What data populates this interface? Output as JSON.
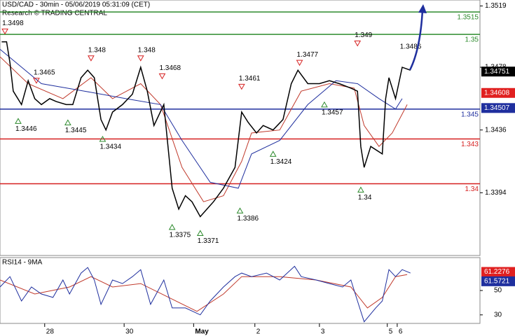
{
  "chart_data": {
    "type": "line",
    "title": "USD/CAD - 30min - 05/06/2019 05:31:09 (CET)",
    "subtitle": "Research © TRADING CENTRAL",
    "xlim": [
      0,
      290
    ],
    "ylim": [
      1.3352,
      1.3523
    ],
    "yticks": [
      1.3519,
      1.3478,
      1.3436,
      1.3394
    ],
    "xticks": [
      {
        "value": 27,
        "label": "28"
      },
      {
        "value": 75,
        "label": "30"
      },
      {
        "value": 117,
        "label": "May"
      },
      {
        "value": 154,
        "label": "2"
      },
      {
        "value": 193,
        "label": "3"
      },
      {
        "value": 234,
        "label": "5"
      },
      {
        "value": 240,
        "label": "6"
      }
    ],
    "x": [
      1,
      4,
      6,
      8,
      13,
      17,
      21,
      25,
      30,
      34,
      40,
      44,
      49,
      53,
      57,
      61,
      64,
      68,
      74,
      80,
      85,
      89,
      93,
      99,
      104,
      108,
      112,
      116,
      121,
      125,
      129,
      135,
      142,
      146,
      150,
      155,
      159,
      165,
      171,
      176,
      180,
      186,
      193,
      199,
      205,
      212,
      216,
      218,
      220,
      224,
      231,
      233,
      235,
      239,
      243,
      248
    ],
    "series": [
      {
        "color": "#000000",
        "values": [
          1.3495,
          1.3495,
          1.3481,
          1.3462,
          1.3453,
          1.3469,
          1.3457,
          1.3453,
          1.3457,
          1.3455,
          1.3453,
          1.3453,
          1.3471,
          1.3476,
          1.3471,
          1.3443,
          1.3436,
          1.3448,
          1.3453,
          1.346,
          1.3478,
          1.3462,
          1.3439,
          1.3453,
          1.3397,
          1.3383,
          1.3392,
          1.3388,
          1.3378,
          1.3383,
          1.3388,
          1.3397,
          1.3411,
          1.3448,
          1.3441,
          1.3434,
          1.3439,
          1.3436,
          1.3443,
          1.3467,
          1.3476,
          1.3467,
          1.3467,
          1.3469,
          1.3467,
          1.3464,
          1.3462,
          1.3425,
          1.3411,
          1.3425,
          1.342,
          1.3457,
          1.3471,
          1.3457,
          1.3478,
          1.3476
        ]
      }
    ],
    "overlays": [
      {
        "color": "#c0392b",
        "x": [
          0,
          17,
          38,
          55,
          68,
          85,
          97,
          110,
          123,
          135,
          146,
          152,
          169,
          182,
          199,
          214,
          220,
          229,
          237,
          246
        ],
        "values": [
          1.3485,
          1.3467,
          1.3457,
          1.3471,
          1.3457,
          1.3467,
          1.3453,
          1.3411,
          1.3388,
          1.3392,
          1.3415,
          1.3434,
          1.3436,
          1.3462,
          1.3467,
          1.3464,
          1.3439,
          1.3425,
          1.3434,
          1.3453
        ]
      },
      {
        "color": "#1f2f9e",
        "x": [
          0,
          25,
          51,
          76,
          97,
          110,
          127,
          144,
          152,
          169,
          186,
          203,
          216,
          229,
          239,
          243
        ],
        "values": [
          1.349,
          1.3467,
          1.3462,
          1.3457,
          1.3453,
          1.3429,
          1.3401,
          1.3397,
          1.342,
          1.3429,
          1.3453,
          1.3469,
          1.3467,
          1.3457,
          1.345,
          1.3457
        ]
      }
    ],
    "levels": [
      {
        "value": 1.3515,
        "color": "#2e8b2e"
      },
      {
        "value": 1.35,
        "color": "#2e8b2e"
      },
      {
        "value": 1.345,
        "color": "#1f2f9e"
      },
      {
        "value": 1.343,
        "color": "#d62020"
      },
      {
        "value": 1.34,
        "color": "#d62020"
      }
    ],
    "last_values": [
      {
        "value": 1.34751,
        "color": "#000000"
      },
      {
        "value": 1.34608,
        "color": "#e02020"
      },
      {
        "value": 1.34507,
        "color": "#1f2f9e"
      }
    ],
    "annotations": [
      {
        "x": 3,
        "value": 1.3498,
        "kind": "high"
      },
      {
        "x": 22,
        "value": 1.3465,
        "kind": "high"
      },
      {
        "x": 55,
        "value": 1.348,
        "kind": "high"
      },
      {
        "x": 85,
        "value": 1.348,
        "kind": "high"
      },
      {
        "x": 98,
        "value": 1.3468,
        "kind": "high"
      },
      {
        "x": 146,
        "value": 1.3461,
        "kind": "high"
      },
      {
        "x": 181,
        "value": 1.3477,
        "kind": "high"
      },
      {
        "x": 216,
        "value": 1.349,
        "kind": "high"
      },
      {
        "x": 248,
        "value": 1.3486,
        "kind": "label"
      },
      {
        "x": 11,
        "value": 1.3446,
        "kind": "low"
      },
      {
        "x": 41,
        "value": 1.3445,
        "kind": "low"
      },
      {
        "x": 62,
        "value": 1.3434,
        "kind": "low"
      },
      {
        "x": 104,
        "value": 1.3375,
        "kind": "low"
      },
      {
        "x": 121,
        "value": 1.3371,
        "kind": "low"
      },
      {
        "x": 145,
        "value": 1.3386,
        "kind": "low"
      },
      {
        "x": 165,
        "value": 1.3424,
        "kind": "low"
      },
      {
        "x": 196,
        "value": 1.3457,
        "kind": "low"
      },
      {
        "x": 218,
        "value": 1.34,
        "kind": "low"
      }
    ],
    "rsi": {
      "title": "RSI14 - 9MA",
      "ylim": [
        23,
        77
      ],
      "yticks": [
        50,
        30
      ],
      "color": "#1f2f9e",
      "x": [
        0,
        6,
        13,
        19,
        25,
        32,
        38,
        42,
        49,
        53,
        57,
        61,
        68,
        74,
        80,
        85,
        91,
        99,
        104,
        112,
        121,
        127,
        135,
        142,
        146,
        152,
        161,
        169,
        178,
        182,
        191,
        199,
        207,
        212,
        216,
        220,
        227,
        231,
        235,
        239,
        243,
        248
      ],
      "values": [
        52.9,
        61.4,
        41.4,
        52.9,
        47.1,
        44.3,
        58.6,
        47.1,
        64.3,
        68.9,
        58.6,
        38.6,
        58.6,
        55.7,
        61.4,
        67.1,
        38.6,
        58.6,
        35.7,
        35.7,
        30,
        41.4,
        52.9,
        61.4,
        64.3,
        61.4,
        64.3,
        58.6,
        69.9,
        61.4,
        58.6,
        55.7,
        52.9,
        58.6,
        41.4,
        24.3,
        35.7,
        41.4,
        67.1,
        61.4,
        67.1,
        64.3
      ],
      "ma": {
        "color": "#c0392b",
        "x": [
          0,
          21,
          42,
          55,
          68,
          85,
          102,
          119,
          135,
          146,
          169,
          191,
          212,
          222,
          231,
          239,
          246
        ],
        "values": [
          58.6,
          47.1,
          52.9,
          61.4,
          52.9,
          55.7,
          44.3,
          32.9,
          47.1,
          61.4,
          61.4,
          58.6,
          52.9,
          35.7,
          44.3,
          61.4,
          63.1
        ]
      },
      "last_values": [
        {
          "value": 61.2276,
          "color": "#e02020"
        },
        {
          "value": 61.5721,
          "color": "#1f2f9e"
        }
      ]
    }
  }
}
